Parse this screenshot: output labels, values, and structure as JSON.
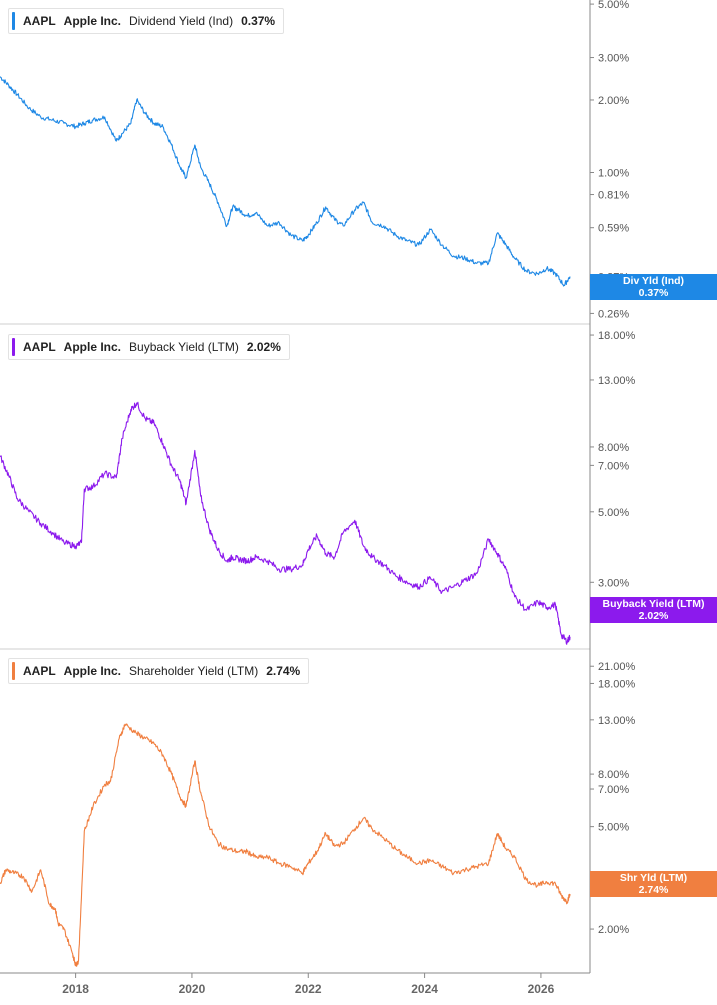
{
  "chart_data": [
    {
      "type": "line",
      "ticker": "AAPL",
      "company": "Apple Inc.",
      "metric": "Dividend Yield (Ind)",
      "current_value": "0.37%",
      "tag_label": "Div Yld (Ind)",
      "tag_value": "0.37%",
      "color": "#1e88e5",
      "scale": "log",
      "ylim": [
        0.235,
        5.2
      ],
      "yticks": [
        {
          "v": 5.0,
          "label": "5.00%"
        },
        {
          "v": 3.0,
          "label": "3.00%"
        },
        {
          "v": 2.0,
          "label": "2.00%"
        },
        {
          "v": 1.0,
          "label": "1.00%"
        },
        {
          "v": 0.81,
          "label": "0.81%"
        },
        {
          "v": 0.59,
          "label": "0.59%"
        },
        {
          "v": 0.37,
          "label": "0.37%"
        },
        {
          "v": 0.26,
          "label": "0.26%"
        }
      ],
      "series": [
        {
          "x": [
            2016.7,
            2016.85,
            2017.0,
            2017.2,
            2017.4,
            2017.6,
            2017.8,
            2018.0,
            2018.15,
            2018.3,
            2018.5,
            2018.7,
            2018.8,
            2018.95,
            2019.05,
            2019.2,
            2019.35,
            2019.5,
            2019.65,
            2019.8,
            2019.9,
            2020.05,
            2020.15,
            2020.3,
            2020.45,
            2020.6,
            2020.7,
            2020.8,
            2020.95,
            2021.1,
            2021.3,
            2021.5,
            2021.7,
            2021.9,
            2022.0,
            2022.15,
            2022.3,
            2022.45,
            2022.6,
            2022.8,
            2022.95,
            2023.1,
            2023.3,
            2023.5,
            2023.7,
            2023.9,
            2024.1,
            2024.3,
            2024.5,
            2024.7,
            2024.9,
            2025.1,
            2025.25,
            2025.4,
            2025.55,
            2025.75,
            2025.95,
            2026.1,
            2026.25,
            2026.4,
            2026.5
          ],
          "y": [
            2.5,
            2.3,
            2.1,
            1.85,
            1.7,
            1.65,
            1.6,
            1.55,
            1.6,
            1.65,
            1.7,
            1.35,
            1.45,
            1.6,
            2.0,
            1.75,
            1.6,
            1.55,
            1.3,
            1.05,
            0.95,
            1.3,
            1.05,
            0.9,
            0.75,
            0.6,
            0.72,
            0.7,
            0.66,
            0.68,
            0.6,
            0.62,
            0.55,
            0.52,
            0.55,
            0.62,
            0.72,
            0.64,
            0.6,
            0.7,
            0.75,
            0.62,
            0.6,
            0.55,
            0.52,
            0.5,
            0.58,
            0.5,
            0.45,
            0.44,
            0.42,
            0.42,
            0.56,
            0.5,
            0.44,
            0.39,
            0.38,
            0.4,
            0.38,
            0.34,
            0.37
          ]
        }
      ]
    },
    {
      "type": "line",
      "ticker": "AAPL",
      "company": "Apple Inc.",
      "metric": "Buyback Yield (LTM)",
      "current_value": "2.02%",
      "tag_label": "Buyback Yield (LTM)",
      "tag_value": "2.02%",
      "color": "#8c1aed",
      "scale": "log",
      "ylim": [
        1.85,
        19.5
      ],
      "yticks": [
        {
          "v": 18.0,
          "label": "18.00%"
        },
        {
          "v": 13.0,
          "label": "13.00%"
        },
        {
          "v": 8.0,
          "label": "8.00%"
        },
        {
          "v": 7.0,
          "label": "7.00%"
        },
        {
          "v": 5.0,
          "label": "5.00%"
        },
        {
          "v": 3.0,
          "label": "3.00%"
        }
      ],
      "series": [
        {
          "x": [
            2016.7,
            2016.85,
            2017.0,
            2017.2,
            2017.4,
            2017.6,
            2017.8,
            2018.0,
            2018.1,
            2018.15,
            2018.3,
            2018.5,
            2018.7,
            2018.8,
            2018.95,
            2019.05,
            2019.2,
            2019.35,
            2019.5,
            2019.65,
            2019.8,
            2019.9,
            2020.05,
            2020.15,
            2020.3,
            2020.45,
            2020.6,
            2020.7,
            2020.8,
            2020.95,
            2021.1,
            2021.3,
            2021.5,
            2021.7,
            2021.9,
            2022.0,
            2022.15,
            2022.3,
            2022.45,
            2022.6,
            2022.8,
            2022.95,
            2023.1,
            2023.3,
            2023.5,
            2023.7,
            2023.9,
            2024.1,
            2024.3,
            2024.5,
            2024.7,
            2024.9,
            2025.1,
            2025.25,
            2025.4,
            2025.55,
            2025.75,
            2025.95,
            2026.1,
            2026.25,
            2026.35,
            2026.45,
            2026.5
          ],
          "y": [
            7.5,
            6.5,
            5.5,
            5.0,
            4.6,
            4.3,
            4.0,
            3.9,
            4.0,
            5.9,
            6.0,
            6.6,
            6.4,
            8.5,
            10.5,
            11.0,
            9.8,
            9.5,
            8.2,
            7.0,
            6.2,
            5.3,
            7.8,
            5.6,
            4.4,
            3.8,
            3.5,
            3.6,
            3.55,
            3.5,
            3.6,
            3.5,
            3.3,
            3.3,
            3.4,
            3.8,
            4.2,
            3.7,
            3.6,
            4.3,
            4.7,
            3.9,
            3.6,
            3.4,
            3.15,
            3.0,
            2.9,
            3.1,
            2.8,
            2.9,
            3.05,
            3.2,
            4.1,
            3.7,
            3.3,
            2.7,
            2.45,
            2.6,
            2.5,
            2.55,
            2.05,
            1.95,
            2.02
          ]
        }
      ]
    },
    {
      "type": "line",
      "ticker": "AAPL",
      "company": "Apple Inc.",
      "metric": "Shareholder Yield (LTM)",
      "current_value": "2.74%",
      "tag_label": "Shr Yld (LTM)",
      "tag_value": "2.74%",
      "color": "#f07f40",
      "scale": "log",
      "ylim": [
        1.35,
        24.5
      ],
      "yticks": [
        {
          "v": 21.0,
          "label": "21.00%"
        },
        {
          "v": 18.0,
          "label": "18.00%"
        },
        {
          "v": 13.0,
          "label": "13.00%"
        },
        {
          "v": 8.0,
          "label": "8.00%"
        },
        {
          "v": 7.0,
          "label": "7.00%"
        },
        {
          "v": 5.0,
          "label": "5.00%"
        },
        {
          "v": 3.0,
          "label": "3.00%"
        },
        {
          "v": 2.0,
          "label": "2.00%"
        }
      ],
      "series": [
        {
          "x": [
            2016.7,
            2016.8,
            2016.95,
            2017.1,
            2017.25,
            2017.4,
            2017.55,
            2017.65,
            2017.7,
            2017.8,
            2017.95,
            2018.0,
            2018.05,
            2018.15,
            2018.3,
            2018.5,
            2018.6,
            2018.75,
            2018.85,
            2019.05,
            2019.2,
            2019.35,
            2019.5,
            2019.65,
            2019.8,
            2019.9,
            2020.05,
            2020.15,
            2020.3,
            2020.45,
            2020.6,
            2020.8,
            2020.95,
            2021.1,
            2021.3,
            2021.5,
            2021.7,
            2021.9,
            2022.0,
            2022.15,
            2022.3,
            2022.45,
            2022.6,
            2022.8,
            2022.95,
            2023.1,
            2023.3,
            2023.5,
            2023.7,
            2023.9,
            2024.1,
            2024.3,
            2024.5,
            2024.7,
            2024.9,
            2025.1,
            2025.25,
            2025.4,
            2025.55,
            2025.75,
            2025.95,
            2026.1,
            2026.25,
            2026.35,
            2026.45,
            2026.5
          ],
          "y": [
            3.0,
            3.4,
            3.3,
            3.2,
            2.8,
            3.4,
            2.5,
            2.4,
            2.1,
            2.0,
            1.6,
            1.45,
            1.5,
            4.8,
            6.0,
            7.3,
            7.5,
            11.0,
            12.5,
            11.5,
            11.0,
            10.5,
            9.5,
            8.0,
            6.5,
            6.0,
            9.0,
            6.8,
            5.0,
            4.3,
            4.1,
            4.0,
            4.0,
            3.8,
            3.8,
            3.6,
            3.5,
            3.3,
            3.6,
            4.0,
            4.7,
            4.2,
            4.3,
            4.9,
            5.4,
            4.9,
            4.5,
            4.1,
            3.8,
            3.6,
            3.7,
            3.5,
            3.3,
            3.4,
            3.5,
            3.6,
            4.7,
            4.1,
            3.8,
            3.1,
            2.95,
            3.05,
            3.0,
            2.7,
            2.55,
            2.74
          ]
        }
      ]
    }
  ],
  "x_axis": {
    "ticks": [
      {
        "v": 2018,
        "label": "2018"
      },
      {
        "v": 2020,
        "label": "2020"
      },
      {
        "v": 2022,
        "label": "2022"
      },
      {
        "v": 2024,
        "label": "2024"
      },
      {
        "v": 2026,
        "label": "2026"
      }
    ]
  }
}
